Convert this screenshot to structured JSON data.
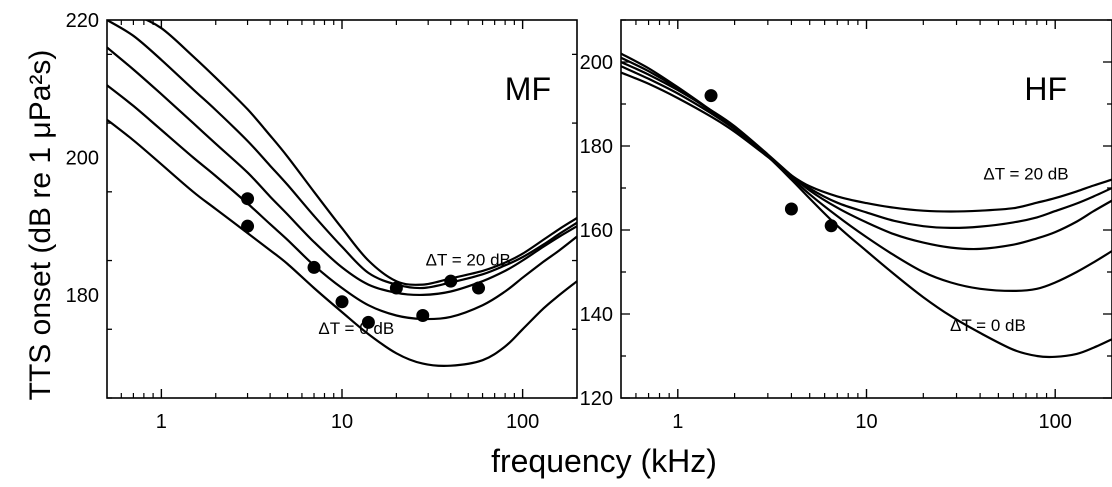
{
  "figure": {
    "ylabel": "TTS onset (dB re 1 μPa²s)",
    "xlabel": "frequency (kHz)"
  },
  "chart_data": [
    {
      "type": "line",
      "panel_label": "MF",
      "x_scale": "log",
      "xlim": [
        0.5,
        200
      ],
      "ylim": [
        165,
        220
      ],
      "xticks": [
        1,
        10,
        100
      ],
      "xtick_labels": [
        "1",
        "10",
        "100"
      ],
      "yticks": [
        180,
        200,
        220
      ],
      "ytick_labels": [
        "180",
        "200",
        "220"
      ],
      "grid": false,
      "annotations": [
        {
          "text": "ΔT = 20 dB",
          "at": [
            50,
            184.3
          ]
        },
        {
          "text": "ΔT = 0 dB",
          "at": [
            12,
            174.3
          ]
        }
      ],
      "series": [
        {
          "x": [
            0.5,
            0.7,
            1,
            1.5,
            2,
            3,
            4,
            5,
            7,
            10,
            14,
            20,
            28,
            40,
            60,
            80,
            100,
            130,
            160,
            200
          ],
          "y": [
            205.5,
            202.5,
            199,
            195,
            192.5,
            189,
            186.5,
            184.5,
            181,
            177.5,
            174.3,
            171.5,
            170,
            169.7,
            170.5,
            172.5,
            175,
            178,
            180,
            182
          ]
        },
        {
          "x": [
            0.5,
            0.7,
            1,
            1.5,
            2,
            3,
            4,
            5,
            7,
            10,
            14,
            20,
            28,
            40,
            60,
            80,
            100,
            130,
            160,
            200
          ],
          "y": [
            210.5,
            207.5,
            204,
            200,
            197.3,
            193.3,
            190.3,
            188,
            184.3,
            181,
            178.5,
            177,
            176.5,
            176.8,
            178.5,
            180.5,
            182.5,
            184.8,
            186.5,
            188.5
          ]
        },
        {
          "x": [
            0.5,
            0.7,
            1,
            1.5,
            2,
            3,
            4,
            5,
            7,
            10,
            14,
            20,
            28,
            40,
            60,
            80,
            100,
            130,
            160,
            200
          ],
          "y": [
            216,
            212.8,
            209.2,
            205,
            202,
            197.8,
            194.3,
            191.7,
            187.7,
            184,
            181.5,
            180.3,
            180,
            180.5,
            182,
            183.5,
            185,
            187,
            188.5,
            190
          ]
        },
        {
          "x": [
            0.5,
            0.7,
            1,
            1.5,
            2,
            3,
            4,
            5,
            7,
            10,
            14,
            20,
            28,
            40,
            60,
            80,
            100,
            130,
            160,
            200
          ],
          "y": [
            220,
            217.7,
            214.2,
            209.9,
            206.9,
            202.4,
            198.8,
            196,
            191.5,
            187,
            183.2,
            181.5,
            181,
            181.8,
            183,
            184.3,
            185.5,
            187.3,
            188.9,
            190.5
          ]
        },
        {
          "x": [
            0.5,
            0.7,
            1,
            1.5,
            2,
            3,
            4,
            5,
            7,
            10,
            14,
            20,
            28,
            40,
            60,
            80,
            100,
            130,
            160,
            200
          ],
          "y": [
            222,
            220.8,
            218.8,
            214.7,
            211.6,
            207,
            203.2,
            200.1,
            195,
            189.7,
            185,
            182,
            181.5,
            182.4,
            183.5,
            184.7,
            186,
            188,
            189.6,
            191.2
          ]
        }
      ],
      "points": {
        "x": [
          3,
          3,
          7,
          10,
          14,
          20,
          28,
          40,
          57
        ],
        "y": [
          194,
          190,
          184,
          179,
          176,
          181,
          177,
          182,
          181
        ]
      }
    },
    {
      "type": "line",
      "panel_label": "HF",
      "x_scale": "log",
      "xlim": [
        0.5,
        200
      ],
      "ylim": [
        120,
        210
      ],
      "xticks": [
        1,
        10,
        100
      ],
      "xtick_labels": [
        "1",
        "10",
        "100"
      ],
      "yticks": [
        120,
        140,
        160,
        180,
        200
      ],
      "ytick_labels": [
        "120",
        "140",
        "160",
        "180",
        "200"
      ],
      "grid": false,
      "annotations": [
        {
          "text": "ΔT = 20 dB",
          "at": [
            70,
            172
          ]
        },
        {
          "text": "ΔT = 0 dB",
          "at": [
            44,
            136
          ]
        }
      ],
      "series": [
        {
          "x": [
            0.5,
            0.7,
            1,
            1.5,
            2,
            3,
            4,
            5,
            7,
            10,
            14,
            20,
            28,
            40,
            60,
            80,
            100,
            130,
            160,
            200
          ],
          "y": [
            202,
            198.5,
            194,
            188.5,
            184.5,
            177.5,
            172,
            167.5,
            161,
            155,
            149.5,
            144,
            139.5,
            135.5,
            131.5,
            130,
            129.8,
            130.5,
            132,
            134
          ]
        },
        {
          "x": [
            0.5,
            0.7,
            1,
            1.5,
            2,
            3,
            4,
            5,
            7,
            10,
            14,
            20,
            28,
            40,
            60,
            80,
            100,
            130,
            160,
            200
          ],
          "y": [
            201,
            197.8,
            193.7,
            188.3,
            184.5,
            177.8,
            172.5,
            168.5,
            163.3,
            158.3,
            154,
            150,
            147.5,
            146,
            145.5,
            146,
            147.5,
            150,
            152.3,
            155
          ]
        },
        {
          "x": [
            0.5,
            0.7,
            1,
            1.5,
            2,
            3,
            4,
            5,
            7,
            10,
            14,
            20,
            28,
            40,
            60,
            80,
            100,
            130,
            160,
            200
          ],
          "y": [
            200,
            197,
            193.3,
            188.5,
            184.7,
            178,
            173,
            169.4,
            165.3,
            161.8,
            159,
            157,
            155.8,
            155.5,
            156.5,
            158,
            159.5,
            162,
            164.5,
            167
          ]
        },
        {
          "x": [
            0.5,
            0.7,
            1,
            1.5,
            2,
            3,
            4,
            5,
            7,
            10,
            14,
            20,
            28,
            40,
            60,
            80,
            100,
            130,
            160,
            200
          ],
          "y": [
            199,
            196,
            192.5,
            187.8,
            184,
            177.7,
            173,
            169.9,
            166.5,
            164.2,
            162.2,
            160.9,
            160.5,
            160.8,
            161.8,
            163,
            164.5,
            166.3,
            168,
            170
          ]
        },
        {
          "x": [
            0.5,
            0.7,
            1,
            1.5,
            2,
            3,
            4,
            5,
            7,
            10,
            14,
            20,
            28,
            40,
            60,
            80,
            100,
            130,
            160,
            200
          ],
          "y": [
            197.5,
            194.8,
            191.4,
            187,
            183.4,
            177.4,
            173,
            170.4,
            168,
            166.4,
            165.3,
            164.6,
            164.4,
            164.6,
            165.2,
            166.5,
            167.6,
            169.2,
            170.6,
            172
          ]
        }
      ],
      "points": {
        "x": [
          1.5,
          4,
          6.5
        ],
        "y": [
          192,
          165,
          161
        ]
      }
    }
  ]
}
